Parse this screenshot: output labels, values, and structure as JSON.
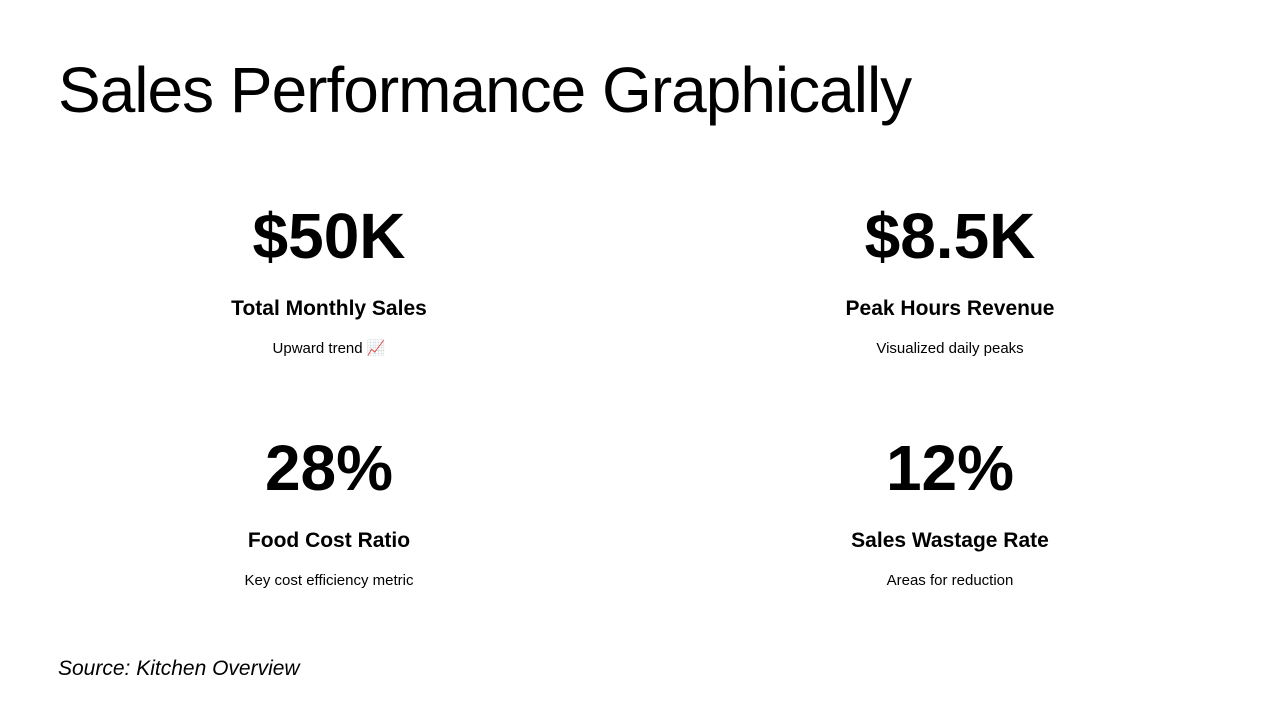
{
  "title": "Sales Performance Graphically",
  "metrics": [
    {
      "value": "$50K",
      "label": "Total Monthly Sales",
      "description": "Upward trend 📈"
    },
    {
      "value": "$8.5K",
      "label": "Peak Hours Revenue",
      "description": "Visualized daily peaks"
    },
    {
      "value": "28%",
      "label": "Food Cost Ratio",
      "description": "Key cost efficiency metric"
    },
    {
      "value": "12%",
      "label": "Sales Wastage Rate",
      "description": "Areas for reduction"
    }
  ],
  "source": "Source: Kitchen Overview"
}
